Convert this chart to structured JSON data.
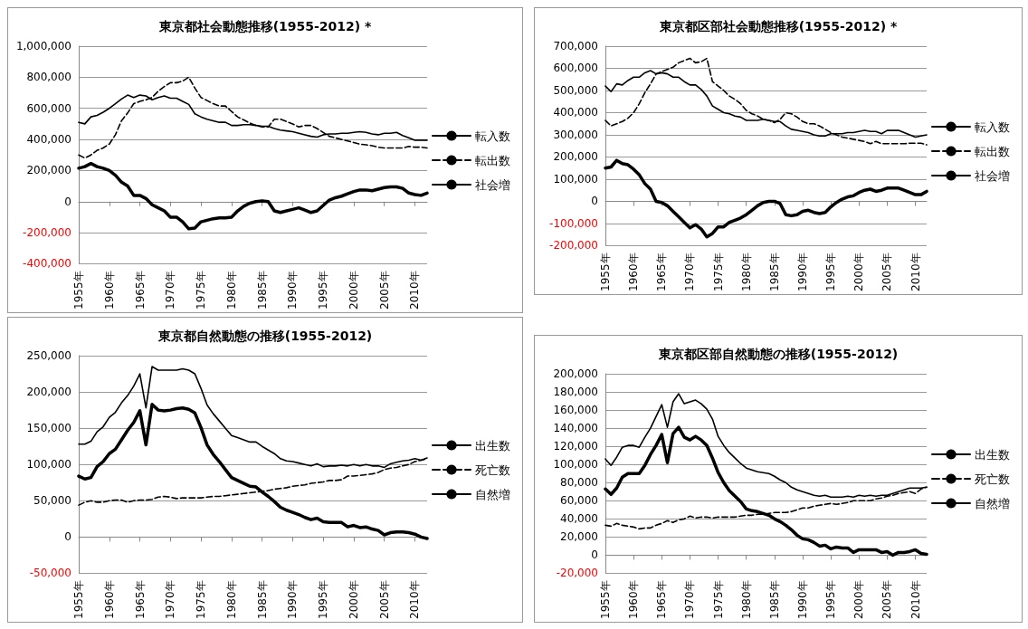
{
  "chart_data": [
    {
      "type": "line",
      "title": "東京都社会動態推移(1955-2012) *",
      "categories": [
        "1955年",
        null,
        null,
        null,
        null,
        "1960年",
        null,
        null,
        null,
        null,
        "1965年",
        null,
        null,
        null,
        null,
        "1970年",
        null,
        null,
        null,
        null,
        "1975年",
        null,
        null,
        null,
        null,
        "1980年",
        null,
        null,
        null,
        null,
        "1985年",
        null,
        null,
        null,
        null,
        "1990年",
        null,
        null,
        null,
        null,
        "1995年",
        null,
        null,
        null,
        null,
        "2000年",
        null,
        null,
        null,
        null,
        "2005年",
        null,
        null,
        null,
        null,
        "2010年",
        null,
        null
      ],
      "series": [
        {
          "name": "転入数",
          "color": "#000000",
          "line_style": "solid",
          "values": [
            510000,
            500000,
            545000,
            555000,
            575000,
            600000,
            630000,
            660000,
            685000,
            670000,
            685000,
            680000,
            655000,
            670000,
            680000,
            665000,
            665000,
            645000,
            625000,
            565000,
            545000,
            530000,
            520000,
            510000,
            510000,
            490000,
            490000,
            495000,
            495000,
            490000,
            485000,
            485000,
            470000,
            460000,
            455000,
            450000,
            440000,
            430000,
            420000,
            415000,
            430000,
            435000,
            435000,
            440000,
            440000,
            445000,
            450000,
            445000,
            435000,
            430000,
            440000,
            440000,
            445000,
            425000,
            410000,
            395000,
            395000,
            395000
          ]
        },
        {
          "name": "転出数",
          "color": "#000000",
          "line_style": "dashed",
          "values": [
            300000,
            280000,
            300000,
            330000,
            345000,
            370000,
            430000,
            520000,
            570000,
            630000,
            645000,
            655000,
            670000,
            710000,
            740000,
            765000,
            765000,
            775000,
            800000,
            730000,
            670000,
            650000,
            630000,
            615000,
            615000,
            580000,
            545000,
            525000,
            505000,
            490000,
            480000,
            480000,
            530000,
            530000,
            515000,
            500000,
            480000,
            490000,
            490000,
            470000,
            445000,
            420000,
            410000,
            400000,
            390000,
            380000,
            370000,
            365000,
            360000,
            350000,
            345000,
            345000,
            345000,
            345000,
            355000,
            350000,
            350000,
            345000
          ]
        },
        {
          "name": "社会増",
          "color": "#000000",
          "line_style": "solid",
          "values": [
            215000,
            225000,
            245000,
            225000,
            215000,
            200000,
            170000,
            125000,
            100000,
            40000,
            40000,
            20000,
            -20000,
            -40000,
            -60000,
            -100000,
            -100000,
            -130000,
            -175000,
            -170000,
            -130000,
            -120000,
            -110000,
            -105000,
            -105000,
            -100000,
            -60000,
            -30000,
            -10000,
            0,
            5000,
            0,
            -60000,
            -70000,
            -60000,
            -50000,
            -40000,
            -55000,
            -70000,
            -60000,
            -25000,
            10000,
            25000,
            35000,
            50000,
            65000,
            75000,
            75000,
            70000,
            80000,
            90000,
            95000,
            95000,
            85000,
            55000,
            45000,
            40000,
            55000
          ]
        }
      ],
      "ylim": [
        -400000,
        1000000
      ],
      "yticks": [
        {
          "value": -400000,
          "label": "-400,000"
        },
        {
          "value": -200000,
          "label": "-200,000"
        },
        {
          "value": 0,
          "label": "0"
        },
        {
          "value": 200000,
          "label": "200,000"
        },
        {
          "value": 400000,
          "label": "400,000"
        },
        {
          "value": 600000,
          "label": "600,000"
        },
        {
          "value": 800000,
          "label": "800,000"
        },
        {
          "value": 1000000,
          "label": "1,000,000"
        }
      ],
      "grid": "y",
      "legend": "right"
    },
    {
      "type": "line",
      "title": "東京都区部社会動態推移(1955-2012) *",
      "categories": [
        "1955年",
        null,
        null,
        null,
        null,
        "1960年",
        null,
        null,
        null,
        null,
        "1965年",
        null,
        null,
        null,
        null,
        "1970年",
        null,
        null,
        null,
        null,
        "1975年",
        null,
        null,
        null,
        null,
        "1980年",
        null,
        null,
        null,
        null,
        "1985年",
        null,
        null,
        null,
        null,
        "1990年",
        null,
        null,
        null,
        null,
        "1995年",
        null,
        null,
        null,
        null,
        "2000年",
        null,
        null,
        null,
        null,
        "2005年",
        null,
        null,
        null,
        null,
        "2010年",
        null,
        null
      ],
      "series": [
        {
          "name": "転入数",
          "color": "#000000",
          "line_style": "solid",
          "values": [
            520000,
            495000,
            530000,
            525000,
            545000,
            560000,
            560000,
            580000,
            590000,
            575000,
            580000,
            575000,
            560000,
            560000,
            540000,
            525000,
            525000,
            505000,
            475000,
            430000,
            415000,
            400000,
            395000,
            385000,
            380000,
            365000,
            365000,
            365000,
            370000,
            365000,
            360000,
            360000,
            340000,
            325000,
            320000,
            315000,
            310000,
            300000,
            295000,
            295000,
            305000,
            305000,
            305000,
            310000,
            310000,
            315000,
            320000,
            315000,
            315000,
            305000,
            320000,
            320000,
            320000,
            310000,
            300000,
            290000,
            295000,
            300000
          ]
        },
        {
          "name": "転出数",
          "color": "#000000",
          "line_style": "dashed",
          "values": [
            365000,
            340000,
            350000,
            360000,
            375000,
            400000,
            440000,
            490000,
            530000,
            575000,
            585000,
            595000,
            605000,
            625000,
            635000,
            645000,
            625000,
            630000,
            645000,
            540000,
            520000,
            500000,
            475000,
            460000,
            440000,
            410000,
            395000,
            385000,
            370000,
            365000,
            355000,
            370000,
            400000,
            395000,
            380000,
            360000,
            350000,
            350000,
            340000,
            325000,
            310000,
            300000,
            290000,
            285000,
            280000,
            275000,
            270000,
            260000,
            270000,
            260000,
            260000,
            260000,
            260000,
            260000,
            262000,
            262000,
            262000,
            255000
          ]
        },
        {
          "name": "社会増",
          "color": "#000000",
          "line_style": "solid",
          "values": [
            150000,
            155000,
            185000,
            170000,
            165000,
            145000,
            120000,
            80000,
            55000,
            0,
            -5000,
            -20000,
            -45000,
            -70000,
            -95000,
            -120000,
            -105000,
            -125000,
            -160000,
            -145000,
            -115000,
            -115000,
            -95000,
            -85000,
            -75000,
            -60000,
            -40000,
            -20000,
            -5000,
            0,
            0,
            -10000,
            -60000,
            -65000,
            -60000,
            -45000,
            -40000,
            -50000,
            -55000,
            -50000,
            -25000,
            -5000,
            10000,
            20000,
            25000,
            40000,
            50000,
            55000,
            45000,
            50000,
            60000,
            60000,
            60000,
            50000,
            40000,
            30000,
            30000,
            45000
          ]
        }
      ],
      "ylim": [
        -200000,
        700000
      ],
      "yticks": [
        {
          "value": -200000,
          "label": "-200,000"
        },
        {
          "value": -100000,
          "label": "-100,000"
        },
        {
          "value": 0,
          "label": "0"
        },
        {
          "value": 100000,
          "label": "100,000"
        },
        {
          "value": 200000,
          "label": "200,000"
        },
        {
          "value": 300000,
          "label": "300,000"
        },
        {
          "value": 400000,
          "label": "400,000"
        },
        {
          "value": 500000,
          "label": "500,000"
        },
        {
          "value": 600000,
          "label": "600,000"
        },
        {
          "value": 700000,
          "label": "700,000"
        }
      ],
      "grid": "y",
      "legend": "right"
    },
    {
      "type": "line",
      "title": "東京都自然動態の推移(1955-2012)",
      "categories": [
        "1955年",
        null,
        null,
        null,
        null,
        "1960年",
        null,
        null,
        null,
        null,
        "1965年",
        null,
        null,
        null,
        null,
        "1970年",
        null,
        null,
        null,
        null,
        "1975年",
        null,
        null,
        null,
        null,
        "1980年",
        null,
        null,
        null,
        null,
        "1985年",
        null,
        null,
        null,
        null,
        "1990年",
        null,
        null,
        null,
        null,
        "1995年",
        null,
        null,
        null,
        null,
        "2000年",
        null,
        null,
        null,
        null,
        "2005年",
        null,
        null,
        null,
        null,
        "2010年",
        null,
        null
      ],
      "series": [
        {
          "name": "出生数",
          "color": "#000000",
          "line_style": "solid",
          "values": [
            128000,
            128000,
            132000,
            145000,
            152000,
            165000,
            172000,
            185000,
            195000,
            208000,
            225000,
            178000,
            235000,
            230000,
            230000,
            230000,
            230000,
            232000,
            230000,
            225000,
            205000,
            182000,
            170000,
            160000,
            150000,
            140000,
            137000,
            134000,
            131000,
            131000,
            125000,
            120000,
            115000,
            108000,
            105000,
            104000,
            102000,
            100000,
            98000,
            101000,
            97000,
            98000,
            98000,
            99000,
            98000,
            100000,
            98000,
            100000,
            98000,
            98000,
            96000,
            101000,
            103000,
            105000,
            106000,
            108000,
            106000,
            109000
          ]
        },
        {
          "name": "死亡数",
          "color": "#000000",
          "line_style": "dashed",
          "values": [
            44000,
            48000,
            50000,
            48000,
            48000,
            50000,
            51000,
            51000,
            48000,
            50000,
            51000,
            51000,
            52000,
            55000,
            56000,
            55000,
            53000,
            54000,
            54000,
            54000,
            54000,
            55000,
            56000,
            56000,
            57000,
            58000,
            59000,
            60000,
            61000,
            62000,
            63000,
            64000,
            66000,
            67000,
            68000,
            70000,
            71000,
            72000,
            74000,
            75000,
            76000,
            78000,
            78000,
            79000,
            84000,
            84000,
            85000,
            86000,
            87000,
            89000,
            93000,
            95000,
            96000,
            98000,
            100000,
            104000,
            106000,
            108000
          ]
        },
        {
          "name": "自然増",
          "color": "#000000",
          "line_style": "solid",
          "values": [
            84000,
            80000,
            82000,
            97000,
            104000,
            115000,
            121000,
            134000,
            147000,
            158000,
            174000,
            127000,
            183000,
            175000,
            174000,
            175000,
            177000,
            178000,
            176000,
            171000,
            151000,
            127000,
            114000,
            104000,
            93000,
            82000,
            78000,
            74000,
            70000,
            69000,
            62000,
            56000,
            49000,
            41000,
            37000,
            34000,
            31000,
            27000,
            24000,
            26000,
            21000,
            20000,
            20000,
            20000,
            14000,
            16000,
            13000,
            14000,
            11000,
            9000,
            3000,
            6000,
            7000,
            7000,
            6000,
            4000,
            0,
            -2000
          ]
        }
      ],
      "ylim": [
        -50000,
        250000
      ],
      "yticks": [
        {
          "value": -50000,
          "label": "-50,000"
        },
        {
          "value": 0,
          "label": "0"
        },
        {
          "value": 50000,
          "label": "50,000"
        },
        {
          "value": 100000,
          "label": "100,000"
        },
        {
          "value": 150000,
          "label": "150,000"
        },
        {
          "value": 200000,
          "label": "200,000"
        },
        {
          "value": 250000,
          "label": "250,000"
        }
      ],
      "grid": "y",
      "legend": "right"
    },
    {
      "type": "line",
      "title": "東京都区部自然動態の推移(1955-2012)",
      "categories": [
        "1955年",
        null,
        null,
        null,
        null,
        "1960年",
        null,
        null,
        null,
        null,
        "1965年",
        null,
        null,
        null,
        null,
        "1970年",
        null,
        null,
        null,
        null,
        "1975年",
        null,
        null,
        null,
        null,
        "1980年",
        null,
        null,
        null,
        null,
        "1985年",
        null,
        null,
        null,
        null,
        "1990年",
        null,
        null,
        null,
        null,
        "1995年",
        null,
        null,
        null,
        null,
        "2000年",
        null,
        null,
        null,
        null,
        "2005年",
        null,
        null,
        null,
        null,
        "2010年",
        null,
        null
      ],
      "series": [
        {
          "name": "出生数",
          "color": "#000000",
          "line_style": "solid",
          "values": [
            106000,
            99000,
            108000,
            119000,
            121000,
            121000,
            119000,
            130000,
            140000,
            153000,
            166000,
            141000,
            169000,
            178000,
            167000,
            169000,
            171000,
            167000,
            161000,
            150000,
            131000,
            121000,
            113000,
            107000,
            101000,
            96000,
            94000,
            92000,
            91000,
            90000,
            87000,
            83000,
            80000,
            75000,
            72000,
            70000,
            68000,
            66000,
            65000,
            66000,
            64000,
            64000,
            64000,
            65000,
            64000,
            66000,
            65000,
            66000,
            65000,
            66000,
            66000,
            68000,
            70000,
            72000,
            74000,
            74000,
            74000,
            75000
          ]
        },
        {
          "name": "死亡数",
          "color": "#000000",
          "line_style": "dashed",
          "values": [
            33000,
            32000,
            35000,
            33000,
            32000,
            31000,
            29000,
            30000,
            30000,
            33000,
            35000,
            38000,
            36000,
            39000,
            40000,
            43000,
            41000,
            42000,
            42000,
            41000,
            42000,
            42000,
            42000,
            42000,
            43000,
            44000,
            44000,
            45000,
            45000,
            46000,
            47000,
            47000,
            47000,
            48000,
            50000,
            52000,
            52000,
            54000,
            55000,
            56000,
            57000,
            56000,
            57000,
            58000,
            60000,
            60000,
            60000,
            60000,
            62000,
            63000,
            65000,
            66000,
            68000,
            69000,
            70000,
            68000,
            73000,
            75000
          ]
        },
        {
          "name": "自然増",
          "color": "#000000",
          "line_style": "solid",
          "values": [
            73000,
            67000,
            74000,
            86000,
            90000,
            90000,
            90000,
            99000,
            111000,
            121000,
            133000,
            102000,
            134000,
            141000,
            130000,
            127000,
            131000,
            127000,
            121000,
            107000,
            91000,
            80000,
            71000,
            65000,
            59000,
            51000,
            49000,
            48000,
            46000,
            44000,
            40000,
            37000,
            33000,
            28000,
            22000,
            18000,
            17000,
            14000,
            10000,
            11000,
            7000,
            9000,
            8000,
            8000,
            3000,
            6000,
            6000,
            6000,
            6000,
            3000,
            4000,
            0,
            3000,
            3000,
            4000,
            6000,
            2000,
            1000
          ]
        }
      ],
      "ylim": [
        -20000,
        200000
      ],
      "yticks": [
        {
          "value": -20000,
          "label": "-20,000"
        },
        {
          "value": 0,
          "label": "0"
        },
        {
          "value": 20000,
          "label": "20,000"
        },
        {
          "value": 40000,
          "label": "40,000"
        },
        {
          "value": 60000,
          "label": "60,000"
        },
        {
          "value": 80000,
          "label": "80,000"
        },
        {
          "value": 100000,
          "label": "100,000"
        },
        {
          "value": 120000,
          "label": "120,000"
        },
        {
          "value": 140000,
          "label": "140,000"
        },
        {
          "value": 160000,
          "label": "160,000"
        },
        {
          "value": 180000,
          "label": "180,000"
        },
        {
          "value": 200000,
          "label": "200,000"
        }
      ],
      "grid": "y",
      "legend": "right"
    }
  ]
}
